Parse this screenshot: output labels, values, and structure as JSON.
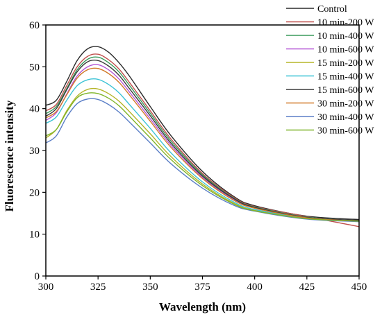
{
  "chart_data": {
    "type": "line",
    "title": "",
    "xlabel": "Wavelength (nm)",
    "ylabel": "Fluorescence intensity",
    "xlim": [
      300,
      450
    ],
    "ylim": [
      0,
      60
    ],
    "xticks": [
      300,
      325,
      350,
      375,
      400,
      425,
      450
    ],
    "yticks": [
      0,
      10,
      20,
      30,
      40,
      50,
      60
    ],
    "grid": false,
    "legend_position": "top-right",
    "series": [
      {
        "name": "Control",
        "color": "#2b2b2b",
        "x": [
          300,
          305,
          310,
          315,
          320,
          325,
          330,
          335,
          340,
          350,
          360,
          375,
          390,
          400,
          425,
          450
        ],
        "y": [
          40.8,
          42.0,
          46.5,
          51.5,
          54.3,
          54.8,
          53.5,
          51.0,
          47.8,
          40.5,
          33.5,
          25.0,
          19.0,
          16.8,
          14.3,
          13.5
        ]
      },
      {
        "name": "10 min-200 W",
        "color": "#c0504d",
        "x": [
          300,
          305,
          310,
          315,
          320,
          325,
          330,
          335,
          340,
          350,
          360,
          375,
          390,
          400,
          425,
          450
        ],
        "y": [
          39.5,
          41.0,
          45.5,
          50.0,
          52.5,
          53.0,
          51.7,
          49.5,
          46.3,
          39.5,
          32.7,
          24.5,
          18.8,
          16.6,
          14.2,
          11.8
        ]
      },
      {
        "name": "10 min-400 W",
        "color": "#3a9a5b",
        "x": [
          300,
          305,
          310,
          315,
          320,
          325,
          330,
          335,
          340,
          350,
          360,
          375,
          390,
          400,
          425,
          450
        ],
        "y": [
          38.8,
          40.5,
          44.8,
          49.3,
          51.8,
          52.3,
          51.0,
          48.8,
          45.6,
          38.9,
          32.2,
          24.2,
          18.6,
          16.5,
          14.1,
          13.2
        ]
      },
      {
        "name": "10 min-600 W",
        "color": "#b455d6",
        "x": [
          300,
          305,
          310,
          315,
          320,
          325,
          330,
          335,
          340,
          350,
          360,
          375,
          390,
          400,
          425,
          450
        ],
        "y": [
          37.2,
          39.0,
          43.5,
          47.8,
          50.0,
          50.5,
          49.3,
          47.1,
          44.0,
          37.6,
          31.2,
          23.6,
          18.3,
          16.3,
          14.0,
          13.2
        ]
      },
      {
        "name": "15 min-200 W",
        "color": "#b5b52a",
        "x": [
          300,
          305,
          310,
          315,
          320,
          325,
          330,
          335,
          340,
          350,
          360,
          375,
          390,
          400,
          425,
          450
        ],
        "y": [
          33.0,
          35.0,
          39.5,
          43.0,
          44.6,
          44.7,
          43.6,
          41.8,
          39.3,
          34.0,
          28.5,
          22.0,
          17.4,
          15.7,
          13.8,
          13.0
        ]
      },
      {
        "name": "15 min-400 W",
        "color": "#3cc3d6",
        "x": [
          300,
          305,
          310,
          315,
          320,
          325,
          330,
          335,
          340,
          350,
          360,
          375,
          390,
          400,
          425,
          450
        ],
        "y": [
          36.5,
          38.0,
          42.0,
          45.5,
          46.9,
          47.0,
          45.8,
          43.8,
          41.0,
          35.3,
          29.4,
          22.5,
          17.7,
          15.9,
          13.9,
          13.2
        ]
      },
      {
        "name": "15 min-600 W",
        "color": "#3b3b3b",
        "x": [
          300,
          305,
          310,
          315,
          320,
          325,
          330,
          335,
          340,
          350,
          360,
          375,
          390,
          400,
          425,
          450
        ],
        "y": [
          38.2,
          40.0,
          44.5,
          48.8,
          51.2,
          51.5,
          50.2,
          48.0,
          44.8,
          38.3,
          31.7,
          23.9,
          18.5,
          16.4,
          14.0,
          13.3
        ]
      },
      {
        "name": "30 min-200 W",
        "color": "#d27a2a",
        "x": [
          300,
          305,
          310,
          315,
          320,
          325,
          330,
          335,
          340,
          350,
          360,
          375,
          390,
          400,
          425,
          450
        ],
        "y": [
          37.8,
          39.3,
          43.3,
          47.3,
          49.3,
          49.6,
          48.4,
          46.3,
          43.3,
          37.0,
          30.7,
          23.3,
          18.1,
          16.2,
          13.9,
          13.1
        ]
      },
      {
        "name": "30 min-400 W",
        "color": "#5b7fc7",
        "x": [
          300,
          305,
          310,
          315,
          320,
          325,
          330,
          335,
          340,
          350,
          360,
          375,
          390,
          400,
          425,
          450
        ],
        "y": [
          31.8,
          33.5,
          38.0,
          41.2,
          42.3,
          42.2,
          41.0,
          39.2,
          36.8,
          31.8,
          26.8,
          21.0,
          16.9,
          15.5,
          13.6,
          13.0
        ]
      },
      {
        "name": "30 min-600 W",
        "color": "#7fb52a",
        "x": [
          300,
          305,
          310,
          315,
          320,
          325,
          330,
          335,
          340,
          350,
          360,
          375,
          390,
          400,
          425,
          450
        ],
        "y": [
          33.5,
          35.0,
          39.2,
          42.6,
          43.7,
          43.6,
          42.5,
          40.7,
          38.2,
          33.0,
          27.8,
          21.6,
          17.2,
          15.6,
          13.7,
          13.1
        ]
      }
    ]
  }
}
